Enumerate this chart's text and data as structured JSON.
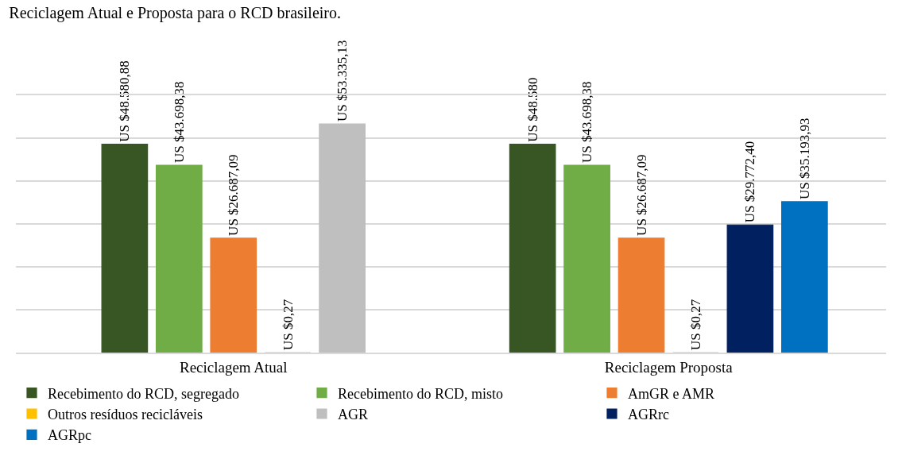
{
  "chart_data": {
    "type": "bar",
    "title": "Reciclagem Atual e Proposta para o RCD brasileiro.",
    "categories": [
      "Reciclagem Atual",
      "Reciclagem Proposta"
    ],
    "ylim": [
      0,
      60000
    ],
    "yticks": [
      {
        "value": 0,
        "label": null
      },
      {
        "value": 10000,
        "label": null
      },
      {
        "value": 20000,
        "label": null
      },
      {
        "value": 30000,
        "label": null
      },
      {
        "value": 40000,
        "label": null
      },
      {
        "value": 50000,
        "label": null
      },
      {
        "value": 60000,
        "label": null
      }
    ],
    "tick_labels": "x",
    "grid": "y",
    "legend": "bottom",
    "series": [
      {
        "name": "Recebimento do RCD, segregado",
        "color": "#375623",
        "values": [
          48580.88,
          48580
        ],
        "value_labels": [
          "US $48.580,88",
          "US $48.580"
        ]
      },
      {
        "name": "Recebimento do RCD, misto",
        "color": "#70ad47",
        "values": [
          43698.38,
          43698.38
        ],
        "value_labels": [
          "US $43.698,38",
          "US $43.698,38"
        ]
      },
      {
        "name": "AmGR e AMR",
        "color": "#ed7d31",
        "values": [
          26687.09,
          26687.09
        ],
        "value_labels": [
          "US $26.687,09",
          "US $26.687,09"
        ]
      },
      {
        "name": "Outros resíduos recicláveis",
        "color": "#ffc000",
        "values": [
          0.27,
          0.27
        ],
        "value_labels": [
          "US $0,27",
          "US $0,27"
        ]
      },
      {
        "name": "AGR",
        "color": "#bfbfbf",
        "values": [
          53335.13,
          null
        ],
        "value_labels": [
          "US $53.335,13",
          null
        ]
      },
      {
        "name": "AGRrc",
        "color": "#002060",
        "values": [
          null,
          29772.4
        ],
        "value_labels": [
          null,
          "US $29.772,40"
        ]
      },
      {
        "name": "AGRpc",
        "color": "#0070c0",
        "values": [
          null,
          35193.93
        ],
        "value_labels": [
          null,
          "US $35.193,93"
        ]
      }
    ]
  }
}
